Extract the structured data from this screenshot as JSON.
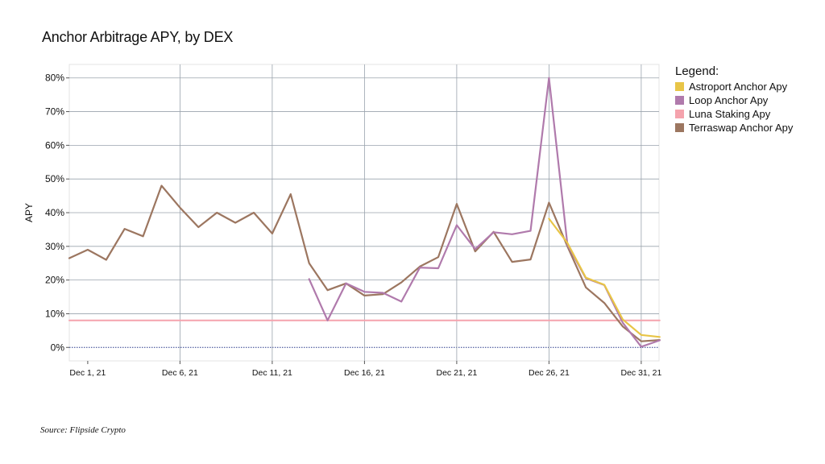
{
  "title": "Anchor Arbitrage APY, by DEX",
  "source": "Source: Flipside Crypto",
  "legend": {
    "title": "Legend:",
    "items": [
      {
        "label": "Astroport Anchor Apy",
        "color": "#e8c547"
      },
      {
        "label": "Loop Anchor Apy",
        "color": "#b07aac"
      },
      {
        "label": "Luna Staking Apy",
        "color": "#f5a3ad"
      },
      {
        "label": "Terraswap Anchor Apy",
        "color": "#9c7660"
      }
    ]
  },
  "chart_data": {
    "type": "line",
    "title": "Anchor Arbitrage APY, by DEX",
    "ylabel": "APY",
    "xlabel": "",
    "x_ticks": [
      "Dec 1, 21",
      "Dec 6, 21",
      "Dec 11, 21",
      "Dec 16, 21",
      "Dec 21, 21",
      "Dec 26, 21",
      "Dec 31, 21"
    ],
    "y_ticks": [
      "0%",
      "10%",
      "20%",
      "30%",
      "40%",
      "50%",
      "60%",
      "70%",
      "80%"
    ],
    "ylim": [
      -4,
      84
    ],
    "xlim": [
      "2021-11-30",
      "2022-01-02"
    ],
    "grid": true,
    "legend_position": "right",
    "series": [
      {
        "name": "Terraswap Anchor Apy",
        "color": "#9c7660",
        "points": [
          [
            "2021-11-30",
            26.5
          ],
          [
            "2021-12-01",
            29
          ],
          [
            "2021-12-02",
            26
          ],
          [
            "2021-12-03",
            35.2
          ],
          [
            "2021-12-04",
            33
          ],
          [
            "2021-12-05",
            48
          ],
          [
            "2021-12-06",
            41.5
          ],
          [
            "2021-12-07",
            35.7
          ],
          [
            "2021-12-08",
            40
          ],
          [
            "2021-12-09",
            37
          ],
          [
            "2021-12-10",
            40
          ],
          [
            "2021-12-11",
            33.8
          ],
          [
            "2021-12-12",
            45.5
          ],
          [
            "2021-12-13",
            25
          ],
          [
            "2021-12-14",
            17
          ],
          [
            "2021-12-15",
            19
          ],
          [
            "2021-12-16",
            15.4
          ],
          [
            "2021-12-17",
            15.8
          ],
          [
            "2021-12-18",
            19.3
          ],
          [
            "2021-12-19",
            24
          ],
          [
            "2021-12-20",
            26.8
          ],
          [
            "2021-12-21",
            42.6
          ],
          [
            "2021-12-22",
            28.5
          ],
          [
            "2021-12-23",
            34.3
          ],
          [
            "2021-12-24",
            25.4
          ],
          [
            "2021-12-25",
            26.1
          ],
          [
            "2021-12-26",
            43
          ],
          [
            "2021-12-27",
            30
          ],
          [
            "2021-12-28",
            17.8
          ],
          [
            "2021-12-29",
            13.2
          ],
          [
            "2021-12-30",
            6.2
          ],
          [
            "2021-12-31",
            1.8
          ],
          [
            "2022-01-01",
            2.2
          ]
        ]
      },
      {
        "name": "Loop Anchor Apy",
        "color": "#b07aac",
        "points": [
          [
            "2021-12-13",
            20.3
          ],
          [
            "2021-12-14",
            8
          ],
          [
            "2021-12-15",
            19
          ],
          [
            "2021-12-16",
            16.5
          ],
          [
            "2021-12-17",
            16.2
          ],
          [
            "2021-12-18",
            13.6
          ],
          [
            "2021-12-19",
            23.7
          ],
          [
            "2021-12-20",
            23.5
          ],
          [
            "2021-12-21",
            36.3
          ],
          [
            "2021-12-22",
            29.2
          ],
          [
            "2021-12-23",
            34.2
          ],
          [
            "2021-12-24",
            33.6
          ],
          [
            "2021-12-25",
            34.6
          ],
          [
            "2021-12-26",
            80
          ],
          [
            "2021-12-27",
            30.5
          ],
          [
            "2021-12-28",
            20.5
          ],
          [
            "2021-12-29",
            18.5
          ],
          [
            "2021-12-30",
            7.3
          ],
          [
            "2021-12-31",
            0.2
          ],
          [
            "2022-01-01",
            2.1
          ]
        ]
      },
      {
        "name": "Astroport Anchor Apy",
        "color": "#e8c547",
        "points": [
          [
            "2021-12-26",
            38.2
          ],
          [
            "2021-12-27",
            31
          ],
          [
            "2021-12-28",
            20.7
          ],
          [
            "2021-12-29",
            18.6
          ],
          [
            "2021-12-30",
            8.3
          ],
          [
            "2021-12-31",
            3.7
          ],
          [
            "2022-01-01",
            3.1
          ]
        ]
      },
      {
        "name": "Luna Staking Apy",
        "color": "#f5a3ad",
        "points": [
          [
            "2021-11-30",
            8
          ],
          [
            "2022-01-01",
            8
          ]
        ]
      }
    ]
  }
}
